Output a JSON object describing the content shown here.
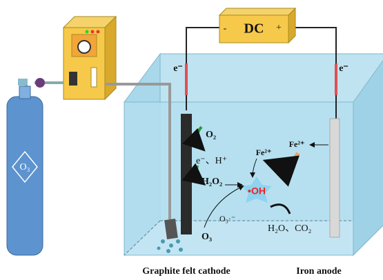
{
  "power": {
    "label": "DC",
    "minus": "-",
    "plus": "+"
  },
  "cylinder": {
    "label": "O₃"
  },
  "electrons": {
    "cathode": "e⁻",
    "anode": "e⁻"
  },
  "reactions": {
    "o2": "O₂",
    "protons": "e⁻、H⁺",
    "h2o2": "H₂O₂",
    "oh": "•OH",
    "fe_left": "Fe²⁺",
    "fe_right": "Fe²⁺",
    "o3": "O₃",
    "o3_radical": "O₃·⁻",
    "products": "H₂O、CO₂"
  },
  "labels": {
    "cathode": "Graphite felt cathode",
    "anode": "Iron anode"
  }
}
